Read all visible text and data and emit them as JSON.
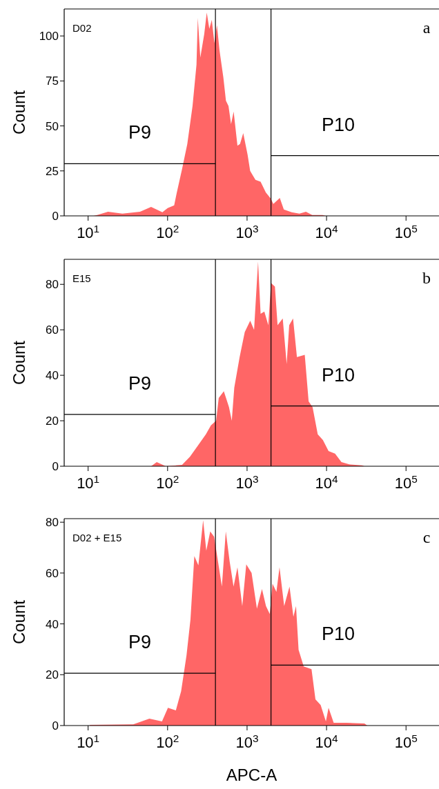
{
  "chart_data": [
    {
      "type": "area",
      "title": "D02",
      "ylabel": "Count",
      "log": "x",
      "xlim": [
        5,
        260000
      ],
      "ylim": [
        0,
        115
      ],
      "xticks": [
        {
          "value": 10,
          "label": "10$^{1}$"
        },
        {
          "value": 100,
          "label": "10$^{2}$"
        },
        {
          "value": 1000,
          "label": "10$^{3}$"
        },
        {
          "value": 10000,
          "label": "10$^{4}$"
        },
        {
          "value": 100000,
          "label": "10$^{5}$"
        }
      ],
      "yticks": [
        0,
        25,
        50,
        75,
        100
      ],
      "series": [
        {
          "type": "area",
          "color": "#ff0000",
          "x": [
            11.7,
            13,
            17.8,
            27,
            45,
            62,
            86,
            100,
            121,
            130,
            152,
            177,
            206,
            231,
            240,
            258,
            289,
            311,
            335,
            360,
            388,
            418,
            450,
            503,
            542,
            584,
            629,
            678,
            757,
            815,
            895,
            1015,
            1093,
            1275,
            1480,
            1720,
            1990,
            2140,
            2580,
            2900,
            3640,
            4560,
            5500,
            6600,
            8900,
            9700
          ],
          "values": [
            0,
            0.5,
            2.3,
            1.2,
            2.3,
            5,
            2,
            4.3,
            5.8,
            12.6,
            26,
            40,
            61,
            84,
            110,
            88,
            101,
            113,
            104,
            109,
            96,
            106,
            92,
            77,
            64,
            61,
            51,
            58,
            39,
            40,
            46,
            34,
            25,
            20,
            19,
            13,
            9.6,
            6.6,
            10,
            3.5,
            2,
            1.2,
            2.3,
            0.5,
            0.5,
            0
          ]
        },
        {
          "type": "line",
          "name": "P9",
          "color": "#000000",
          "x": [
            5,
            400
          ],
          "values": [
            29,
            29
          ]
        },
        {
          "type": "line",
          "name": "P10",
          "color": "#000000",
          "x": [
            2000,
            260000
          ],
          "values": [
            33.5,
            33.5
          ]
        }
      ],
      "ref_lines": [
        {
          "axis": "x",
          "value": 400,
          "color": "#000000"
        },
        {
          "axis": "x",
          "value": 2000,
          "color": "#000000"
        }
      ],
      "annotations": [
        "a"
      ]
    },
    {
      "type": "area",
      "title": "E15",
      "ylabel": "Count",
      "log": "x",
      "xlim": [
        5,
        260000
      ],
      "ylim": [
        0,
        91
      ],
      "xticks": [
        {
          "value": 10,
          "label": "10$^{1}$"
        },
        {
          "value": 100,
          "label": "10$^{2}$"
        },
        {
          "value": 1000,
          "label": "10$^{3}$"
        },
        {
          "value": 10000,
          "label": "10$^{4}$"
        },
        {
          "value": 100000,
          "label": "10$^{5}$"
        }
      ],
      "yticks": [
        0,
        20,
        40,
        60,
        80
      ],
      "series": [
        {
          "type": "area",
          "color": "#ff0000",
          "x": [
            58,
            62,
            73,
            95,
            152,
            191,
            240,
            303,
            351,
            408,
            440,
            510,
            592,
            642,
            690,
            806,
            935,
            1095,
            1225,
            1375,
            1480,
            1650,
            1850,
            2000,
            2240,
            2420,
            2810,
            3150,
            3390,
            3790,
            4240,
            5320,
            5950,
            6670,
            7750,
            9000,
            10600,
            12800,
            15400,
            19300,
            28000,
            30000
          ],
          "values": [
            0,
            0,
            1.8,
            0,
            0.6,
            4.2,
            9,
            14,
            18,
            20,
            30,
            33,
            26,
            20,
            34.5,
            48,
            59,
            64,
            60,
            90,
            67,
            68,
            62,
            80.6,
            79,
            62,
            65,
            45,
            62,
            65,
            48,
            49,
            28.5,
            26,
            14,
            11.5,
            6.7,
            5.5,
            1.8,
            0.8,
            0.4,
            0
          ]
        },
        {
          "type": "line",
          "name": "P9",
          "color": "#000000",
          "x": [
            5,
            400
          ],
          "values": [
            22.8,
            22.8
          ]
        },
        {
          "type": "line",
          "name": "P10",
          "color": "#000000",
          "x": [
            2000,
            260000
          ],
          "values": [
            26.5,
            26.5
          ]
        }
      ],
      "ref_lines": [
        {
          "axis": "x",
          "value": 400,
          "color": "#000000"
        },
        {
          "axis": "x",
          "value": 2000,
          "color": "#000000"
        }
      ],
      "annotations": [
        "b"
      ]
    },
    {
      "type": "area",
      "title": "D02 + E15",
      "xlabel": "APC-A",
      "ylabel": "Count",
      "log": "x",
      "xlim": [
        5,
        260000
      ],
      "ylim": [
        0,
        81.4
      ],
      "xticks": [
        {
          "value": 10,
          "label": "10$^{1}$"
        },
        {
          "value": 100,
          "label": "10$^{2}$"
        },
        {
          "value": 1000,
          "label": "10$^{3}$"
        },
        {
          "value": 10000,
          "label": "10$^{4}$"
        },
        {
          "value": 100000,
          "label": "10$^{5}$"
        }
      ],
      "yticks": [
        0,
        20,
        40,
        60,
        80
      ],
      "series": [
        {
          "type": "area",
          "color": "#ff0000",
          "x": [
            10.5,
            37,
            59,
            85,
            101,
            127,
            148,
            173,
            194,
            217,
            244,
            280,
            307,
            344,
            385,
            431,
            482,
            540,
            604,
            676,
            757,
            870,
            977,
            1140,
            1330,
            1540,
            1730,
            1930,
            2090,
            2340,
            2560,
            2930,
            3420,
            3830,
            4130,
            4450,
            5160,
            6470,
            7250,
            8430,
            9810,
            10600,
            12300,
            17800,
            30000,
            32500
          ],
          "values": [
            0.3,
            0.5,
            2.7,
            1.6,
            7,
            6,
            13.5,
            27.6,
            41.7,
            66.7,
            63,
            80.8,
            68.8,
            76.4,
            74.3,
            64.5,
            54.7,
            76.4,
            64.5,
            54.7,
            62.3,
            47,
            63.4,
            60,
            46,
            53.7,
            47,
            43.9,
            55.8,
            52.6,
            62.3,
            47,
            54.7,
            42.8,
            47,
            29.8,
            23.3,
            22.2,
            10.3,
            8.1,
            1.6,
            7,
            1.1,
            1.1,
            0.8,
            0
          ]
        },
        {
          "type": "line",
          "name": "P9",
          "color": "#000000",
          "x": [
            5,
            400
          ],
          "values": [
            20.6,
            20.6
          ]
        },
        {
          "type": "line",
          "name": "P10",
          "color": "#000000",
          "x": [
            2000,
            260000
          ],
          "values": [
            23.8,
            23.8
          ]
        }
      ],
      "ref_lines": [
        {
          "axis": "x",
          "value": 400,
          "color": "#000000"
        },
        {
          "axis": "x",
          "value": 2000,
          "color": "#000000"
        }
      ],
      "annotations": [
        "c"
      ]
    }
  ]
}
